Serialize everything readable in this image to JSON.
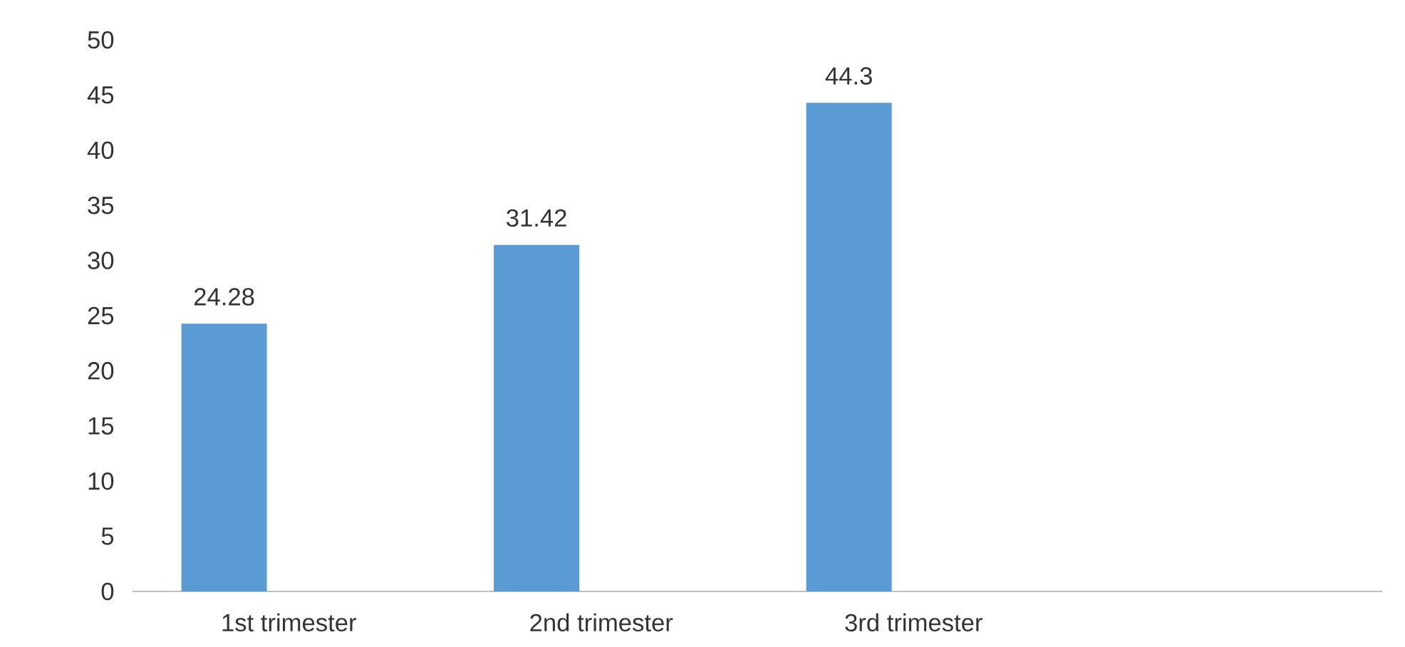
{
  "chart_data": {
    "type": "bar",
    "categories": [
      "1st trimester",
      "2nd trimester",
      "3rd trimester",
      null
    ],
    "values": [
      24.28,
      31.42,
      44.3,
      null
    ],
    "color": "#5b9bd5",
    "ylim": [
      0,
      50
    ],
    "yticks": [
      0,
      5,
      10,
      15,
      20,
      25,
      30,
      35,
      40,
      45,
      50
    ],
    "data_labels": true
  }
}
